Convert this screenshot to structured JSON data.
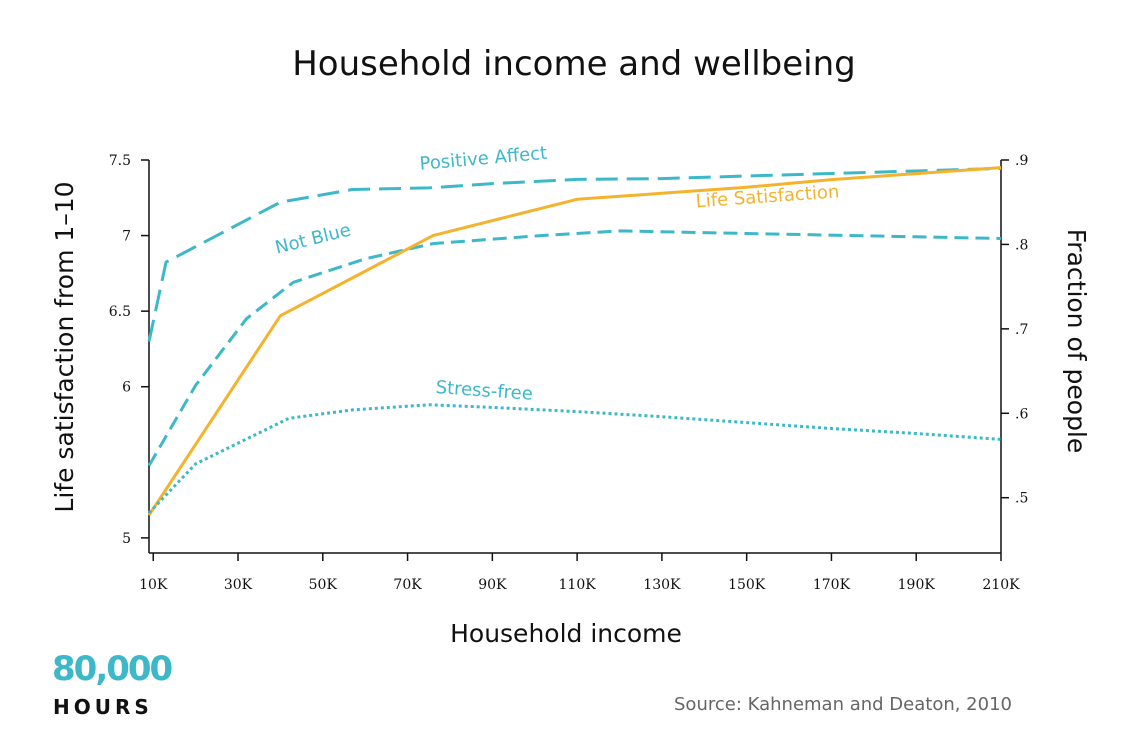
{
  "colors": {
    "teal": "#3DB8C9",
    "orange": "#F5B22C",
    "axis": "#111111",
    "source": "#666666"
  },
  "branding": {
    "logo_number": "80,000",
    "logo_word": "HOURS"
  },
  "source": "Source: Kahneman and Deaton, 2010",
  "chart_data": {
    "type": "line",
    "title": "Household income and wellbeing",
    "xlabel": "Household income",
    "ylabel": "Life satisfaction from 1–10",
    "y2label": "Fraction of people",
    "x_ticks": [
      {
        "value": 10000,
        "label": "10K"
      },
      {
        "value": 30000,
        "label": "30K"
      },
      {
        "value": 50000,
        "label": "50K"
      },
      {
        "value": 70000,
        "label": "70K"
      },
      {
        "value": 90000,
        "label": "90K"
      },
      {
        "value": 110000,
        "label": "110K"
      },
      {
        "value": 130000,
        "label": "130K"
      },
      {
        "value": 150000,
        "label": "150K"
      },
      {
        "value": 170000,
        "label": "170K"
      },
      {
        "value": 190000,
        "label": "190K"
      },
      {
        "value": 210000,
        "label": "210K"
      }
    ],
    "y_ticks": [
      {
        "value": 5,
        "label": "5"
      },
      {
        "value": 6,
        "label": "6"
      },
      {
        "value": 6.5,
        "label": "6.5"
      },
      {
        "value": 7,
        "label": "7"
      },
      {
        "value": 7.5,
        "label": "7.5"
      }
    ],
    "y2_ticks": [
      {
        "value": 0.5,
        "label": ".5"
      },
      {
        "value": 0.6,
        "label": ".6"
      },
      {
        "value": 0.7,
        "label": ".7"
      },
      {
        "value": 0.8,
        "label": ".8"
      },
      {
        "value": 0.9,
        "label": ".9"
      }
    ],
    "xlim": [
      9000,
      210000
    ],
    "ylim": [
      4.9,
      7.5
    ],
    "y2lim": [
      0.4345,
      0.9
    ],
    "series": [
      {
        "name": "Positive Affect",
        "axis": "right",
        "color": "#3DB8C9",
        "dash": "22 9",
        "label_position": {
          "x": 88000,
          "y": 0.895,
          "rotate": -5
        },
        "points": [
          {
            "x": 9000,
            "y": 0.685
          },
          {
            "x": 13000,
            "y": 0.779
          },
          {
            "x": 40000,
            "y": 0.85
          },
          {
            "x": 57000,
            "y": 0.865
          },
          {
            "x": 75000,
            "y": 0.867
          },
          {
            "x": 90000,
            "y": 0.872
          },
          {
            "x": 110000,
            "y": 0.877
          },
          {
            "x": 130000,
            "y": 0.878
          },
          {
            "x": 150000,
            "y": 0.881
          },
          {
            "x": 170000,
            "y": 0.884
          },
          {
            "x": 210000,
            "y": 0.89
          }
        ]
      },
      {
        "name": "Not Blue",
        "axis": "right",
        "color": "#3DB8C9",
        "dash": "14 7",
        "label_position": {
          "x": 48000,
          "y": 0.8,
          "rotate": -14
        },
        "points": [
          {
            "x": 9000,
            "y": 0.538
          },
          {
            "x": 20000,
            "y": 0.633
          },
          {
            "x": 32000,
            "y": 0.712
          },
          {
            "x": 43000,
            "y": 0.755
          },
          {
            "x": 60000,
            "y": 0.783
          },
          {
            "x": 76000,
            "y": 0.801
          },
          {
            "x": 100000,
            "y": 0.81
          },
          {
            "x": 120000,
            "y": 0.816
          },
          {
            "x": 150000,
            "y": 0.813
          },
          {
            "x": 190000,
            "y": 0.809
          },
          {
            "x": 210000,
            "y": 0.807
          }
        ]
      },
      {
        "name": "Life Satisfaction",
        "axis": "left",
        "color": "#F5B22C",
        "dash": "",
        "label_position": {
          "x": 155000,
          "y": 7.22,
          "rotate": -4
        },
        "points": [
          {
            "x": 9000,
            "y": 5.15
          },
          {
            "x": 40000,
            "y": 6.47
          },
          {
            "x": 76000,
            "y": 7.0
          },
          {
            "x": 110000,
            "y": 7.24
          },
          {
            "x": 130000,
            "y": 7.28
          },
          {
            "x": 150000,
            "y": 7.32
          },
          {
            "x": 170000,
            "y": 7.37
          },
          {
            "x": 190000,
            "y": 7.41
          },
          {
            "x": 210000,
            "y": 7.45
          }
        ]
      },
      {
        "name": "Stress-free",
        "axis": "right",
        "color": "#3DB8C9",
        "dash": "3 3",
        "label_position": {
          "x": 88000,
          "y": 0.62,
          "rotate": 4
        },
        "points": [
          {
            "x": 9000,
            "y": 0.482
          },
          {
            "x": 20000,
            "y": 0.54
          },
          {
            "x": 42000,
            "y": 0.594
          },
          {
            "x": 57000,
            "y": 0.604
          },
          {
            "x": 75000,
            "y": 0.61
          },
          {
            "x": 90000,
            "y": 0.607
          },
          {
            "x": 110000,
            "y": 0.602
          },
          {
            "x": 130000,
            "y": 0.596
          },
          {
            "x": 150000,
            "y": 0.589
          },
          {
            "x": 170000,
            "y": 0.582
          },
          {
            "x": 190000,
            "y": 0.576
          },
          {
            "x": 210000,
            "y": 0.569
          }
        ]
      }
    ],
    "grid": false
  }
}
